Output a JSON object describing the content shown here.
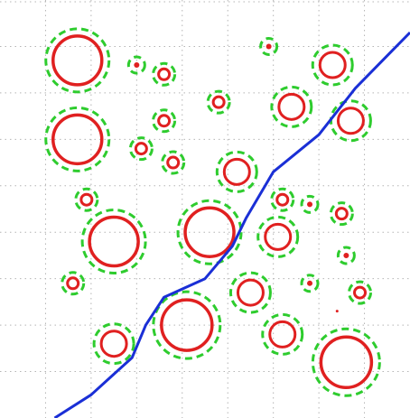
{
  "colors": {
    "background": "#ffffff",
    "grid": "#b4b4b4",
    "circle_inner": "#e02020",
    "circle_outer": "#2ecc2e",
    "boundary": "#1a2fd6"
  },
  "grid": {
    "style": "dotted",
    "visible": true
  },
  "chart_data": {
    "type": "scatter",
    "title": "",
    "xlabel": "",
    "ylabel": "",
    "xlim": [
      0,
      9
    ],
    "ylim": [
      0,
      9
    ],
    "grid": true,
    "legend": "none",
    "points": [
      {
        "x": 1.7,
        "y": 7.7,
        "size": "large"
      },
      {
        "x": 3.0,
        "y": 7.6,
        "size": "dot"
      },
      {
        "x": 3.6,
        "y": 7.4,
        "size": "small"
      },
      {
        "x": 5.9,
        "y": 8.0,
        "size": "dot"
      },
      {
        "x": 7.3,
        "y": 7.6,
        "size": "medium"
      },
      {
        "x": 1.7,
        "y": 6.0,
        "size": "large"
      },
      {
        "x": 3.6,
        "y": 6.4,
        "size": "small"
      },
      {
        "x": 3.1,
        "y": 5.8,
        "size": "small"
      },
      {
        "x": 3.8,
        "y": 5.5,
        "size": "small"
      },
      {
        "x": 4.8,
        "y": 6.8,
        "size": "small"
      },
      {
        "x": 6.4,
        "y": 6.7,
        "size": "medium"
      },
      {
        "x": 7.7,
        "y": 6.4,
        "size": "medium"
      },
      {
        "x": 5.2,
        "y": 5.3,
        "size": "medium"
      },
      {
        "x": 1.9,
        "y": 4.7,
        "size": "small"
      },
      {
        "x": 6.2,
        "y": 4.7,
        "size": "small"
      },
      {
        "x": 6.8,
        "y": 4.6,
        "size": "dot"
      },
      {
        "x": 7.5,
        "y": 4.4,
        "size": "small"
      },
      {
        "x": 2.5,
        "y": 3.8,
        "size": "large"
      },
      {
        "x": 4.6,
        "y": 4.0,
        "size": "large"
      },
      {
        "x": 6.1,
        "y": 3.9,
        "size": "medium"
      },
      {
        "x": 7.6,
        "y": 3.5,
        "size": "dot"
      },
      {
        "x": 1.6,
        "y": 2.9,
        "size": "small"
      },
      {
        "x": 5.5,
        "y": 2.7,
        "size": "medium"
      },
      {
        "x": 6.8,
        "y": 2.9,
        "size": "dot"
      },
      {
        "x": 7.9,
        "y": 2.7,
        "size": "small"
      },
      {
        "x": 7.4,
        "y": 2.3,
        "size": "tiny"
      },
      {
        "x": 4.1,
        "y": 2.0,
        "size": "xlarge"
      },
      {
        "x": 2.5,
        "y": 1.6,
        "size": "medium"
      },
      {
        "x": 6.2,
        "y": 1.8,
        "size": "medium"
      },
      {
        "x": 7.6,
        "y": 1.2,
        "size": "xlarge"
      }
    ],
    "boundary": {
      "x": [
        1.2,
        2.0,
        2.9,
        3.2,
        3.6,
        4.5,
        5.1,
        5.4,
        6.0,
        7.0,
        7.8,
        8.6,
        9.0
      ],
      "y": [
        0.0,
        0.5,
        1.3,
        2.0,
        2.6,
        3.0,
        3.7,
        4.3,
        5.3,
        6.1,
        7.1,
        7.9,
        8.3
      ]
    }
  }
}
